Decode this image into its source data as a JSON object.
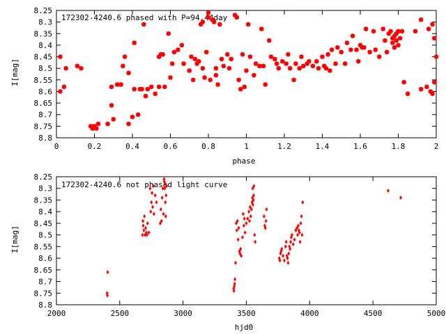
{
  "chart_data": [
    {
      "type": "scatter",
      "title": "172302-4240.6 phased with P=94.44day",
      "xlabel": "phase",
      "ylabel": "I[mag]",
      "xlim": [
        0,
        2
      ],
      "ylim": [
        8.8,
        8.25
      ],
      "x_ticks": [
        "0",
        "0.2",
        "0.4",
        "0.6",
        "0.8",
        "1",
        "1.2",
        "1.4",
        "1.6",
        "1.8",
        "2"
      ],
      "y_ticks": [
        "8.25",
        "8.3",
        "8.35",
        "8.4",
        "8.45",
        "8.5",
        "8.55",
        "8.6",
        "8.65",
        "8.7",
        "8.75",
        "8.8"
      ],
      "marker_color": "#ff0000",
      "marker": "star",
      "grid": false,
      "series": [
        {
          "points": [
            [
              0.02,
              8.45
            ],
            [
              0.02,
              8.6
            ],
            [
              0.04,
              8.58
            ],
            [
              0.05,
              8.5
            ],
            [
              0.11,
              8.49
            ],
            [
              0.13,
              8.5
            ],
            [
              0.18,
              8.75
            ],
            [
              0.19,
              8.76
            ],
            [
              0.2,
              8.75
            ],
            [
              0.21,
              8.76
            ],
            [
              0.22,
              8.74
            ],
            [
              0.27,
              8.74
            ],
            [
              0.29,
              8.58
            ],
            [
              0.29,
              8.66
            ],
            [
              0.3,
              8.72
            ],
            [
              0.32,
              8.57
            ],
            [
              0.34,
              8.57
            ],
            [
              0.35,
              8.49
            ],
            [
              0.36,
              8.45
            ],
            [
              0.38,
              8.74
            ],
            [
              0.38,
              8.52
            ],
            [
              0.4,
              8.71
            ],
            [
              0.41,
              8.59
            ],
            [
              0.41,
              8.39
            ],
            [
              0.43,
              8.7
            ],
            [
              0.44,
              8.59
            ],
            [
              0.45,
              8.59
            ],
            [
              0.46,
              8.31
            ],
            [
              0.47,
              8.62
            ],
            [
              0.48,
              8.59
            ],
            [
              0.5,
              8.58
            ],
            [
              0.52,
              8.61
            ],
            [
              0.54,
              8.45
            ],
            [
              0.54,
              8.58
            ],
            [
              0.55,
              8.44
            ],
            [
              0.56,
              8.44
            ],
            [
              0.57,
              8.58
            ],
            [
              0.59,
              8.35
            ],
            [
              0.6,
              8.54
            ],
            [
              0.61,
              8.48
            ],
            [
              0.62,
              8.43
            ],
            [
              0.64,
              8.42
            ],
            [
              0.66,
              8.4
            ],
            [
              0.67,
              8.48
            ],
            [
              0.7,
              8.51
            ],
            [
              0.71,
              8.45
            ],
            [
              0.72,
              8.55
            ],
            [
              0.73,
              8.46
            ],
            [
              0.74,
              8.48
            ],
            [
              0.75,
              8.47
            ],
            [
              0.76,
              8.31
            ],
            [
              0.77,
              8.5
            ],
            [
              0.77,
              8.3
            ],
            [
              0.78,
              8.54
            ],
            [
              0.79,
              8.43
            ],
            [
              0.8,
              8.26
            ],
            [
              0.8,
              8.28
            ],
            [
              0.81,
              8.55
            ],
            [
              0.82,
              8.29
            ],
            [
              0.83,
              8.3
            ],
            [
              0.84,
              8.5
            ],
            [
              0.84,
              8.53
            ],
            [
              0.85,
              8.57
            ],
            [
              0.86,
              8.31
            ],
            [
              0.87,
              8.46
            ],
            [
              0.88,
              8.49
            ],
            [
              0.9,
              8.44
            ],
            [
              0.91,
              8.5
            ],
            [
              0.92,
              8.46
            ],
            [
              0.94,
              8.27
            ],
            [
              0.95,
              8.28
            ],
            [
              0.96,
              8.55
            ],
            [
              0.97,
              8.59
            ],
            [
              0.98,
              8.44
            ],
            [
              0.99,
              8.58
            ],
            [
              1.0,
              8.51
            ],
            [
              1.01,
              8.31
            ],
            [
              1.02,
              8.45
            ],
            [
              1.04,
              8.53
            ],
            [
              1.05,
              8.48
            ],
            [
              1.07,
              8.49
            ],
            [
              1.08,
              8.33
            ],
            [
              1.09,
              8.49
            ],
            [
              1.1,
              8.57
            ],
            [
              1.12,
              8.38
            ],
            [
              1.13,
              8.45
            ],
            [
              1.15,
              8.46
            ],
            [
              1.16,
              8.48
            ],
            [
              1.17,
              8.5
            ],
            [
              1.19,
              8.47
            ],
            [
              1.21,
              8.48
            ],
            [
              1.22,
              8.44
            ],
            [
              1.23,
              8.5
            ],
            [
              1.25,
              8.55
            ],
            [
              1.26,
              8.48
            ],
            [
              1.28,
              8.5
            ],
            [
              1.29,
              8.45
            ],
            [
              1.3,
              8.49
            ],
            [
              1.32,
              8.48
            ],
            [
              1.33,
              8.47
            ],
            [
              1.35,
              8.49
            ],
            [
              1.37,
              8.47
            ],
            [
              1.38,
              8.5
            ],
            [
              1.4,
              8.45
            ],
            [
              1.41,
              8.49
            ],
            [
              1.42,
              8.5
            ],
            [
              1.43,
              8.44
            ],
            [
              1.44,
              8.51
            ],
            [
              1.45,
              8.42
            ],
            [
              1.47,
              8.48
            ],
            [
              1.48,
              8.41
            ],
            [
              1.5,
              8.43
            ],
            [
              1.52,
              8.48
            ],
            [
              1.53,
              8.39
            ],
            [
              1.55,
              8.42
            ],
            [
              1.56,
              8.36
            ],
            [
              1.58,
              8.42
            ],
            [
              1.59,
              8.47
            ],
            [
              1.6,
              8.4
            ],
            [
              1.61,
              8.41
            ],
            [
              1.62,
              8.41
            ],
            [
              1.63,
              8.33
            ],
            [
              1.65,
              8.43
            ],
            [
              1.67,
              8.34
            ],
            [
              1.68,
              8.42
            ],
            [
              1.7,
              8.45
            ],
            [
              1.72,
              8.33
            ],
            [
              1.73,
              8.38
            ],
            [
              1.74,
              8.43
            ],
            [
              1.75,
              8.35
            ],
            [
              1.76,
              8.34
            ],
            [
              1.77,
              8.37
            ],
            [
              1.77,
              8.39
            ],
            [
              1.78,
              8.41
            ],
            [
              1.78,
              8.36
            ],
            [
              1.79,
              8.38
            ],
            [
              1.79,
              8.35
            ],
            [
              1.8,
              8.4
            ],
            [
              1.8,
              8.34
            ],
            [
              1.81,
              8.37
            ],
            [
              1.82,
              8.34
            ],
            [
              1.83,
              8.56
            ],
            [
              1.85,
              8.61
            ],
            [
              1.89,
              8.34
            ],
            [
              1.92,
              8.29
            ],
            [
              1.92,
              8.59
            ],
            [
              1.95,
              8.58
            ],
            [
              1.96,
              8.33
            ],
            [
              1.97,
              8.6
            ],
            [
              1.98,
              8.61
            ],
            [
              1.98,
              8.31
            ],
            [
              1.99,
              8.56
            ],
            [
              1.99,
              8.37
            ],
            [
              2.0,
              8.45
            ]
          ]
        }
      ]
    },
    {
      "type": "scatter",
      "title": "172302-4240.6 not phased light curve",
      "xlabel": "hjd0",
      "ylabel": "I[mag]",
      "xlim": [
        2000,
        5000
      ],
      "ylim": [
        8.8,
        8.25
      ],
      "x_ticks": [
        "2000",
        "2500",
        "3000",
        "3500",
        "4000",
        "4500",
        "5000"
      ],
      "y_ticks": [
        "8.25",
        "8.3",
        "8.35",
        "8.4",
        "8.45",
        "8.5",
        "8.55",
        "8.6",
        "8.65",
        "8.7",
        "8.75",
        "8.8"
      ],
      "marker_color": "#ff0000",
      "marker": "diamond",
      "grid": false,
      "series": [
        {
          "points": [
            [
              2400,
              8.75
            ],
            [
              2402,
              8.76
            ],
            [
              2405,
              8.66
            ],
            [
              2680,
              8.5
            ],
            [
              2683,
              8.44
            ],
            [
              2685,
              8.46
            ],
            [
              2690,
              8.48
            ],
            [
              2695,
              8.42
            ],
            [
              2700,
              8.5
            ],
            [
              2705,
              8.47
            ],
            [
              2710,
              8.49
            ],
            [
              2715,
              8.5
            ],
            [
              2720,
              8.45
            ],
            [
              2730,
              8.49
            ],
            [
              2740,
              8.3
            ],
            [
              2745,
              8.4
            ],
            [
              2750,
              8.36
            ],
            [
              2755,
              8.32
            ],
            [
              2760,
              8.38
            ],
            [
              2765,
              8.29
            ],
            [
              2770,
              8.41
            ],
            [
              2780,
              8.33
            ],
            [
              2790,
              8.36
            ],
            [
              2820,
              8.45
            ],
            [
              2825,
              8.39
            ],
            [
              2830,
              8.44
            ],
            [
              2835,
              8.34
            ],
            [
              2840,
              8.3
            ],
            [
              2845,
              8.41
            ],
            [
              2850,
              8.26
            ],
            [
              2852,
              8.27
            ],
            [
              2855,
              8.3
            ],
            [
              2858,
              8.28
            ],
            [
              2860,
              8.36
            ],
            [
              2863,
              8.42
            ],
            [
              2866,
              8.33
            ],
            [
              2870,
              8.29
            ],
            [
              3400,
              8.73
            ],
            [
              3402,
              8.74
            ],
            [
              3405,
              8.72
            ],
            [
              3408,
              8.71
            ],
            [
              3410,
              8.69
            ],
            [
              3415,
              8.62
            ],
            [
              3420,
              8.45
            ],
            [
              3425,
              8.48
            ],
            [
              3430,
              8.44
            ],
            [
              3435,
              8.52
            ],
            [
              3440,
              8.47
            ],
            [
              3445,
              8.57
            ],
            [
              3450,
              8.58
            ],
            [
              3455,
              8.56
            ],
            [
              3460,
              8.59
            ],
            [
              3470,
              8.51
            ],
            [
              3475,
              8.41
            ],
            [
              3480,
              8.46
            ],
            [
              3485,
              8.43
            ],
            [
              3490,
              8.49
            ],
            [
              3500,
              8.45
            ],
            [
              3510,
              8.43
            ],
            [
              3520,
              8.4
            ],
            [
              3525,
              8.44
            ],
            [
              3530,
              8.38
            ],
            [
              3535,
              8.42
            ],
            [
              3540,
              8.39
            ],
            [
              3545,
              8.36
            ],
            [
              3548,
              8.34
            ],
            [
              3550,
              8.3
            ],
            [
              3552,
              8.37
            ],
            [
              3555,
              8.35
            ],
            [
              3558,
              8.33
            ],
            [
              3560,
              8.29
            ],
            [
              3565,
              8.5
            ],
            [
              3570,
              8.53
            ],
            [
              3640,
              8.42
            ],
            [
              3645,
              8.46
            ],
            [
              3650,
              8.47
            ],
            [
              3655,
              8.44
            ],
            [
              3660,
              8.39
            ],
            [
              3760,
              8.6
            ],
            [
              3765,
              8.61
            ],
            [
              3770,
              8.58
            ],
            [
              3775,
              8.57
            ],
            [
              3780,
              8.56
            ],
            [
              3790,
              8.59
            ],
            [
              3800,
              8.61
            ],
            [
              3810,
              8.55
            ],
            [
              3815,
              8.53
            ],
            [
              3820,
              8.59
            ],
            [
              3825,
              8.6
            ],
            [
              3830,
              8.62
            ],
            [
              3835,
              8.58
            ],
            [
              3840,
              8.55
            ],
            [
              3845,
              8.56
            ],
            [
              3850,
              8.53
            ],
            [
              3855,
              8.51
            ],
            [
              3860,
              8.5
            ],
            [
              3870,
              8.54
            ],
            [
              3880,
              8.52
            ],
            [
              3890,
              8.48
            ],
            [
              3900,
              8.47
            ],
            [
              3905,
              8.5
            ],
            [
              3910,
              8.46
            ],
            [
              3915,
              8.48
            ],
            [
              3920,
              8.49
            ],
            [
              3925,
              8.53
            ],
            [
              3930,
              8.45
            ],
            [
              3935,
              8.42
            ],
            [
              3940,
              8.5
            ],
            [
              3945,
              8.36
            ],
            [
              4620,
              8.31
            ],
            [
              4720,
              8.34
            ]
          ]
        }
      ]
    }
  ]
}
